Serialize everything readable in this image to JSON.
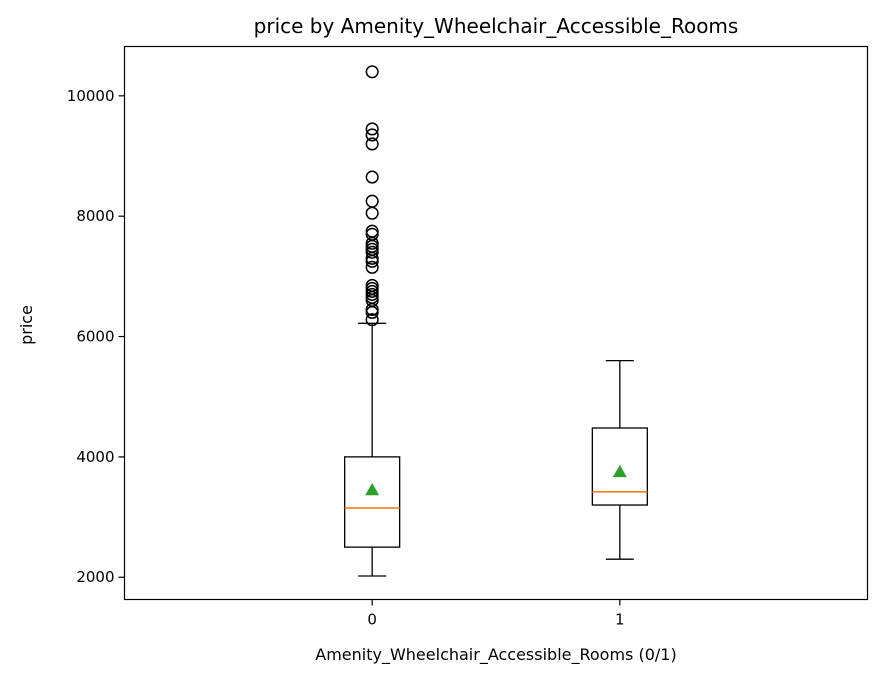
{
  "chart_data": {
    "type": "box",
    "title": "price by Amenity_Wheelchair_Accessible_Rooms",
    "xlabel": "Amenity_Wheelchair_Accessible_Rooms (0/1)",
    "ylabel": "price",
    "categories": [
      "0",
      "1"
    ],
    "ylim": [
      1630,
      10820
    ],
    "yticks": [
      2000,
      4000,
      6000,
      8000,
      10000
    ],
    "grid": false,
    "boxes": [
      {
        "category": "0",
        "whisker_low": 2020,
        "q1": 2500,
        "median": 3150,
        "q3": 4000,
        "whisker_high": 6220,
        "mean": 3450,
        "outliers": [
          6280,
          6400,
          6450,
          6600,
          6650,
          6700,
          6750,
          6800,
          6850,
          7150,
          7250,
          7300,
          7400,
          7450,
          7500,
          7550,
          7700,
          7750,
          8050,
          8250,
          8650,
          9200,
          9350,
          9450,
          10400
        ]
      },
      {
        "category": "1",
        "whisker_low": 2300,
        "q1": 3200,
        "median": 3420,
        "q3": 4480,
        "whisker_high": 5600,
        "mean": 3750,
        "outliers": []
      }
    ],
    "colors": {
      "box": "#000000",
      "median": "#ff7f0e",
      "mean": "#2ca02c",
      "outlier": "#000000"
    }
  }
}
